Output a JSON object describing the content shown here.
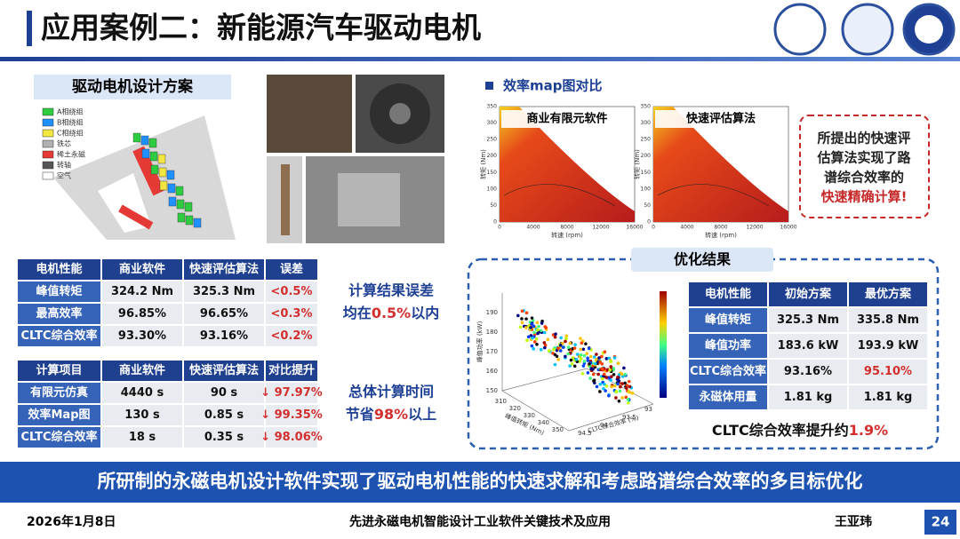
{
  "header": {
    "title": "应用案例二：新能源汽车驱动电机"
  },
  "design": {
    "title": "驱动电机设计方案",
    "legend": [
      "A相绕组",
      "B相绕组",
      "C相绕组",
      "铁芯",
      "稀土永磁",
      "转轴",
      "空气"
    ]
  },
  "table1": {
    "header": [
      "电机性能",
      "商业软件",
      "快速评估算法",
      "误差"
    ],
    "rows": [
      [
        "峰值转矩",
        "324.2 Nm",
        "325.3 Nm",
        "<0.5%"
      ],
      [
        "最高效率",
        "96.85%",
        "96.65%",
        "<0.3%"
      ],
      [
        "CLTC综合效率",
        "93.30%",
        "93.16%",
        "<0.2%"
      ]
    ]
  },
  "note1": [
    "计算结果误差",
    "均在",
    "0.5%",
    "以内"
  ],
  "table2": {
    "header": [
      "计算项目",
      "商业软件",
      "快速评估算法",
      "对比提升"
    ],
    "rows": [
      [
        "有限元仿真",
        "4440 s",
        "90 s",
        "↓ 97.97%"
      ],
      [
        "效率Map图",
        "130 s",
        "0.85 s",
        "↓ 99.35%"
      ],
      [
        "CLTC综合效率",
        "18 s",
        "0.35 s",
        "↓ 98.06%"
      ]
    ]
  },
  "note2": [
    "总体计算时间",
    "节省",
    "98%",
    "以上"
  ],
  "efficiency": {
    "title": "效率map图对比",
    "maps": [
      {
        "label": "商业有限元软件"
      },
      {
        "label": "快速评估算法"
      }
    ],
    "x_label": "转速 (rpm)",
    "y_label": "转矩 (Nm)",
    "xticks": [
      "0",
      "4000",
      "8000",
      "12000",
      "16000"
    ],
    "yticks": [
      "0",
      "50",
      "100",
      "150",
      "200",
      "250",
      "300",
      "350"
    ]
  },
  "callout": [
    "所提出的快速评",
    "估算法实现了路",
    "谱综合效率的",
    "快速精确计算!"
  ],
  "optimization": {
    "title": "优化结果",
    "scatter": {
      "z_label": "峰值功率 (kW)",
      "x_label": "峰值转矩 (Nm)",
      "y_label": "CLTC综合效率 (%)",
      "zticks": [
        "150",
        "160",
        "170",
        "180",
        "190"
      ],
      "xticks": [
        "310",
        "320",
        "330",
        "340",
        "350"
      ],
      "yticks": [
        "94.5",
        "94",
        "93.5",
        "93"
      ]
    },
    "table": {
      "header": [
        "电机性能",
        "初始方案",
        "最优方案"
      ],
      "rows": [
        [
          "峰值转矩",
          "325.3 Nm",
          "335.8 Nm"
        ],
        [
          "峰值功率",
          "183.6 kW",
          "193.9 kW"
        ],
        [
          "CLTC综合效率",
          "93.16%",
          "95.10%"
        ],
        [
          "永磁体用量",
          "1.81 kg",
          "1.81 kg"
        ]
      ]
    },
    "summary": [
      "CLTC综合效率提升约",
      "1.9%"
    ]
  },
  "banner": "所研制的永磁电机设计软件实现了驱动电机性能的快速求解和考虑路谱综合效率的多目标优化",
  "footer": {
    "date": "2026年1月8日",
    "title": "先进永磁电机智能设计工业软件关键技术及应用",
    "author": "王亚玮",
    "page": "24"
  }
}
